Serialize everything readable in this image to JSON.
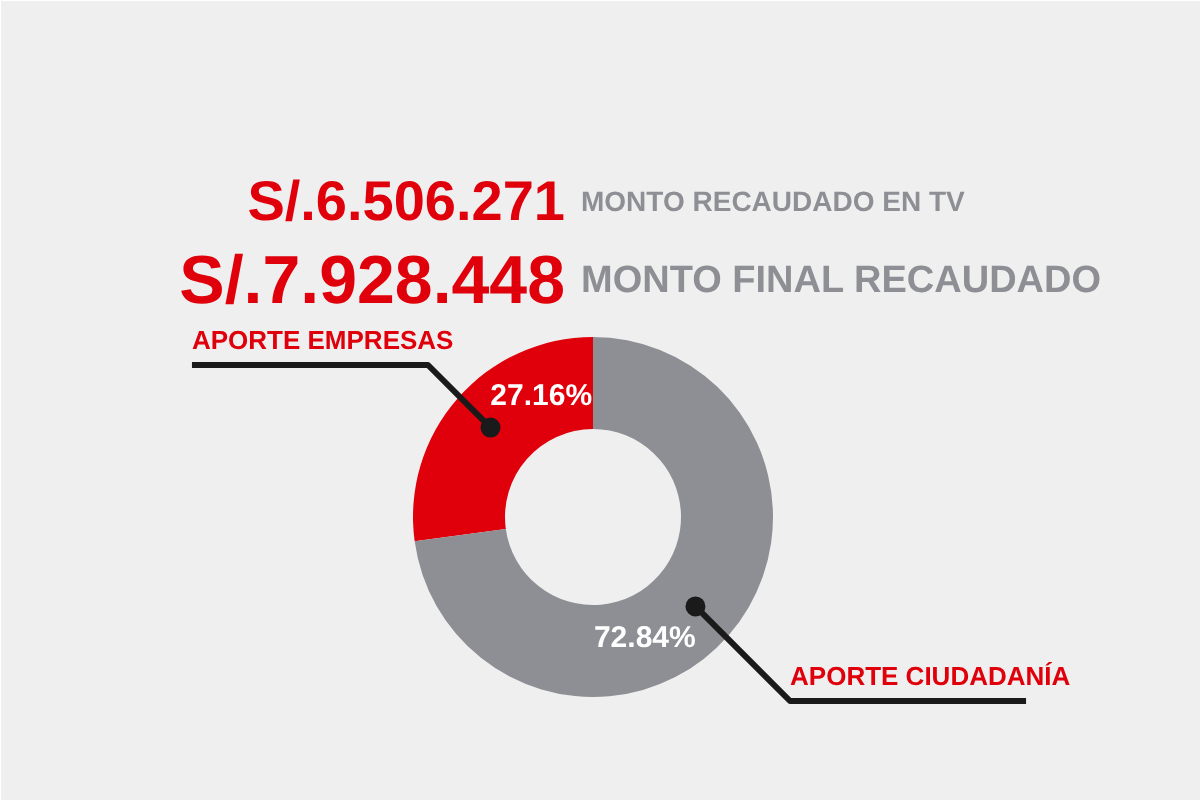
{
  "chart_data": {
    "type": "donut",
    "categories": [
      "APORTE EMPRESAS",
      "APORTE CIUDADANÍA"
    ],
    "values": [
      27.16,
      72.84
    ],
    "colors": [
      "#e0000b",
      "#8e8f94"
    ],
    "value_labels": [
      "27.16%",
      "72.84%"
    ],
    "annotations": [
      "S/.6.506.271",
      "MONTO RECAUDADO EN TV",
      "S/.7.928.448",
      "MONTO FINAL RECAUDADO"
    ]
  }
}
